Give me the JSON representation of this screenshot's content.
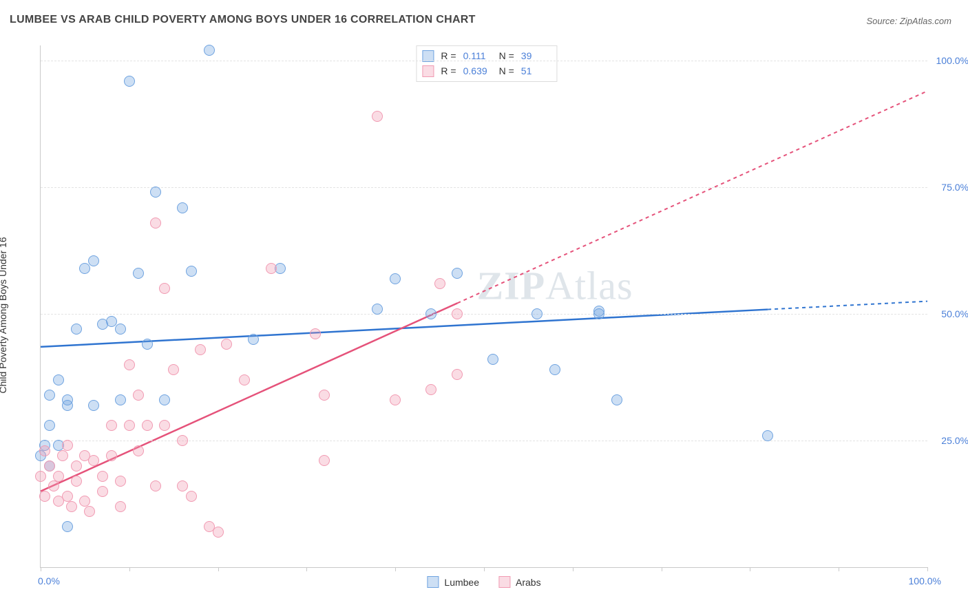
{
  "header": {
    "title": "LUMBEE VS ARAB CHILD POVERTY AMONG BOYS UNDER 16 CORRELATION CHART",
    "source_prefix": "Source: ",
    "source": "ZipAtlas.com"
  },
  "watermark": {
    "zip": "ZIP",
    "atlas": "Atlas"
  },
  "chart": {
    "type": "scatter",
    "ylabel": "Child Poverty Among Boys Under 16",
    "xlim": [
      0,
      100
    ],
    "ylim": [
      0,
      103
    ],
    "background_color": "#ffffff",
    "grid_color": "#e3e3e3",
    "axis_color": "#c9c9c9",
    "tick_label_color": "#4a7fd8",
    "axis_labels": {
      "x_min": "0.0%",
      "x_max": "100.0%",
      "y_ticks": [
        {
          "v": 25,
          "label": "25.0%"
        },
        {
          "v": 50,
          "label": "50.0%"
        },
        {
          "v": 75,
          "label": "75.0%"
        },
        {
          "v": 100,
          "label": "100.0%"
        }
      ]
    },
    "x_ticks": [
      0,
      10,
      20,
      30,
      40,
      50,
      60,
      70,
      80,
      90,
      100
    ],
    "series": [
      {
        "name": "Lumbee",
        "fill": "rgba(111,163,224,0.35)",
        "stroke": "#6fa3e0",
        "trend_color": "#2f74d0",
        "marker_r": 8,
        "stats": {
          "R": "0.111",
          "N": "39"
        },
        "trend": {
          "y_at_x0": 43.5,
          "y_at_x100": 52.5
        },
        "points": [
          [
            0,
            22
          ],
          [
            0.5,
            24
          ],
          [
            1,
            28
          ],
          [
            1,
            34
          ],
          [
            2,
            37
          ],
          [
            2,
            24
          ],
          [
            3,
            32
          ],
          [
            4,
            47
          ],
          [
            5,
            59
          ],
          [
            6,
            60.5
          ],
          [
            6,
            32
          ],
          [
            3,
            33
          ],
          [
            7,
            48
          ],
          [
            8,
            48.5
          ],
          [
            9,
            47
          ],
          [
            9,
            33
          ],
          [
            10,
            96
          ],
          [
            11,
            58
          ],
          [
            12,
            44
          ],
          [
            13,
            74
          ],
          [
            14,
            33
          ],
          [
            16,
            71
          ],
          [
            17,
            58.5
          ],
          [
            19,
            102
          ],
          [
            24,
            45
          ],
          [
            27,
            59
          ],
          [
            38,
            51
          ],
          [
            40,
            57
          ],
          [
            44,
            50
          ],
          [
            47,
            58
          ],
          [
            51,
            41
          ],
          [
            56,
            50
          ],
          [
            58,
            39
          ],
          [
            63,
            50
          ],
          [
            63,
            50.5
          ],
          [
            65,
            33
          ],
          [
            82,
            26
          ],
          [
            3,
            8
          ],
          [
            1,
            20
          ]
        ]
      },
      {
        "name": "Arabs",
        "fill": "rgba(241,154,178,0.35)",
        "stroke": "#f19ab2",
        "trend_color": "#e5527a",
        "marker_r": 8,
        "stats": {
          "R": "0.639",
          "N": "51"
        },
        "trend": {
          "y_at_x0": 15,
          "y_at_x100": 94
        },
        "points": [
          [
            0,
            18
          ],
          [
            0.5,
            14
          ],
          [
            0.5,
            23
          ],
          [
            1,
            20
          ],
          [
            1.5,
            16
          ],
          [
            2,
            13
          ],
          [
            2,
            18
          ],
          [
            2.5,
            22
          ],
          [
            3,
            24
          ],
          [
            3,
            14
          ],
          [
            3.5,
            12
          ],
          [
            4,
            17
          ],
          [
            4,
            20
          ],
          [
            5,
            13
          ],
          [
            5,
            22
          ],
          [
            5.5,
            11
          ],
          [
            6,
            21
          ],
          [
            7,
            15
          ],
          [
            7,
            18
          ],
          [
            8,
            22
          ],
          [
            8,
            28
          ],
          [
            9,
            12
          ],
          [
            9,
            17
          ],
          [
            10,
            28
          ],
          [
            10,
            40
          ],
          [
            11,
            23
          ],
          [
            11,
            34
          ],
          [
            12,
            28
          ],
          [
            13,
            16
          ],
          [
            13,
            68
          ],
          [
            14,
            28
          ],
          [
            14,
            55
          ],
          [
            15,
            39
          ],
          [
            16,
            16
          ],
          [
            16,
            25
          ],
          [
            17,
            14
          ],
          [
            18,
            43
          ],
          [
            19,
            8
          ],
          [
            20,
            7
          ],
          [
            21,
            44
          ],
          [
            23,
            37
          ],
          [
            26,
            59
          ],
          [
            31,
            46
          ],
          [
            32,
            21
          ],
          [
            32,
            34
          ],
          [
            38,
            89
          ],
          [
            40,
            33
          ],
          [
            44,
            35
          ],
          [
            45,
            56
          ],
          [
            47,
            38
          ],
          [
            47,
            50
          ]
        ]
      }
    ],
    "stats_legend": {
      "r_label": "R =",
      "n_label": "N ="
    }
  }
}
